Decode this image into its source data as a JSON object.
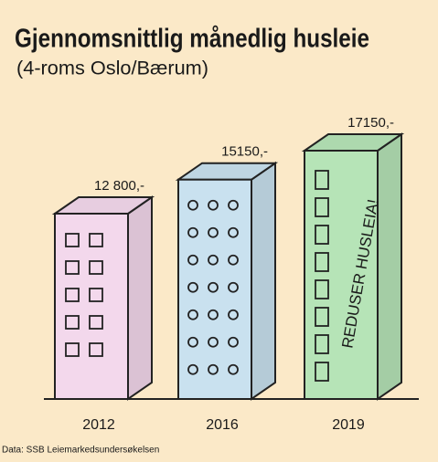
{
  "chart_data": {
    "type": "bar",
    "title": "Gjennomsnittlig månedlig husleie",
    "subtitle": "(4-roms Oslo/Bærum)",
    "categories": [
      "2012",
      "2016",
      "2019"
    ],
    "values": [
      12800,
      15150,
      17150
    ],
    "value_labels": [
      "12 800,-",
      "15150,-",
      "17150,-"
    ],
    "colors": [
      "#f3d8ec",
      "#c9e1ef",
      "#b6e4b7"
    ],
    "annotation": "REDUSER HUSLEIA!",
    "source": "Data: SSB Leiemarkedsundersøkelsen"
  }
}
